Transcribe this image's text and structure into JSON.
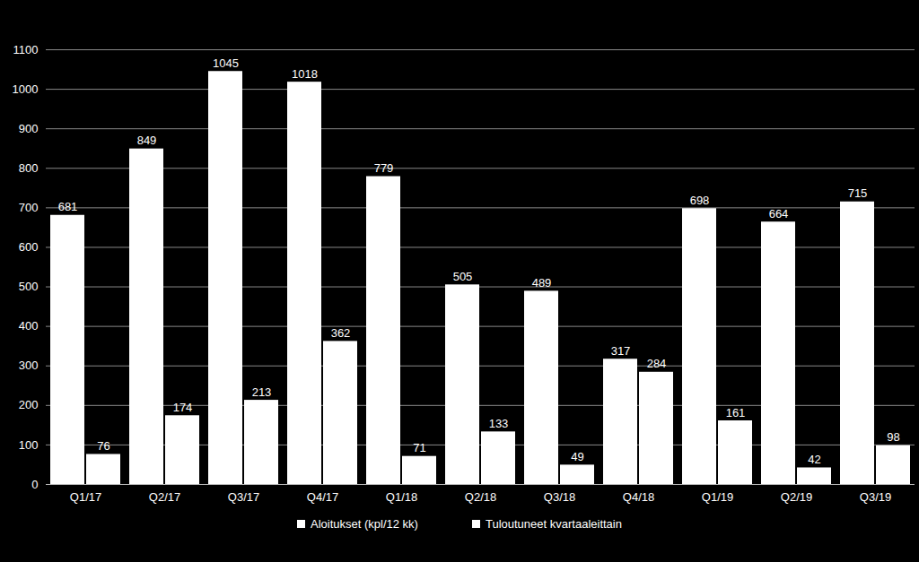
{
  "chart_data": {
    "type": "bar",
    "categories": [
      "Q1/17",
      "Q2/17",
      "Q3/17",
      "Q4/17",
      "Q1/18",
      "Q2/18",
      "Q3/18",
      "Q4/18",
      "Q1/19",
      "Q2/19",
      "Q3/19"
    ],
    "series": [
      {
        "name": "Aloitukset (kpl/12 kk)",
        "color": "#ffffff",
        "values": [
          681,
          849,
          1045,
          1018,
          779,
          505,
          489,
          317,
          698,
          664,
          715
        ]
      },
      {
        "name": "Tuloutuneet kvartaaleittain",
        "color": "#ffffff",
        "values": [
          76,
          174,
          213,
          362,
          71,
          133,
          49,
          284,
          161,
          42,
          98
        ]
      }
    ],
    "ylim": [
      0,
      1100
    ],
    "yticks": [
      0,
      100,
      200,
      300,
      400,
      500,
      600,
      700,
      800,
      900,
      1000,
      1100
    ],
    "grid": true,
    "data_labels": true,
    "legend": "bottom"
  }
}
